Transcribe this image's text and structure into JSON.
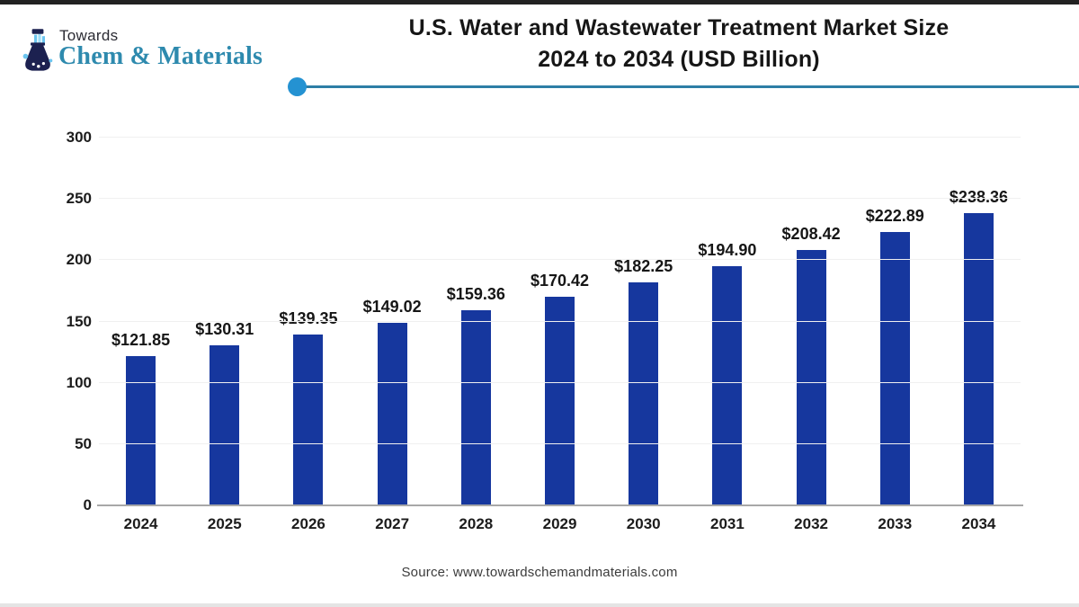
{
  "logo": {
    "top": "Towards",
    "brand": "Chem & Materials"
  },
  "title": {
    "line1": "U.S. Water and Wastewater Treatment Market Size",
    "line2": "2024 to 2034 (USD Billion)"
  },
  "source": {
    "text": "Source: www.towardschemandmaterials.com"
  },
  "colors": {
    "bar": "#16379e",
    "brand_teal": "#2e8aae",
    "flask_navy": "#1c2150",
    "flask_lightblue": "#6cc5ef",
    "header_line": "#2d7ea6",
    "header_dot": "#2492d2",
    "axis_line": "#a8a8a8",
    "gridline": "#f0f0f0"
  },
  "chart_data": {
    "type": "bar",
    "title": "U.S. Water and Wastewater Treatment Market Size 2024 to 2034 (USD Billion)",
    "categories": [
      "2024",
      "2025",
      "2026",
      "2027",
      "2028",
      "2029",
      "2030",
      "2031",
      "2032",
      "2033",
      "2034"
    ],
    "values": [
      121.85,
      130.31,
      139.35,
      149.02,
      159.36,
      170.42,
      182.25,
      194.9,
      208.42,
      222.89,
      238.36
    ],
    "value_labels": [
      "$121.85",
      "$130.31",
      "$139.35",
      "$149.02",
      "$159.36",
      "$170.42",
      "$182.25",
      "$194.90",
      "$208.42",
      "$222.89",
      "$238.36"
    ],
    "xlabel": "",
    "ylabel": "",
    "ylim": [
      0,
      300
    ],
    "yticks": [
      0,
      50,
      100,
      150,
      200,
      250,
      300
    ],
    "grid": "horizontal-faint",
    "legend": "none",
    "bar_color": "#16379e"
  }
}
